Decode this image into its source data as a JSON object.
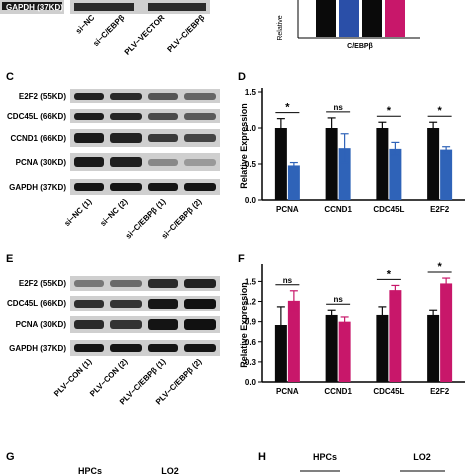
{
  "top_strip": {
    "gapdh_label": "GAPDH (37KD)",
    "lanes": [
      "si−NC",
      "si−C/EBPβ",
      "PLV−VECTOR",
      "PLV−C/EBPβ"
    ],
    "partial_chart_ylabel": "Relative",
    "partial_chart_xlabel": "C/EBPβ"
  },
  "panels": {
    "C": {
      "letter": "C",
      "bands": [
        "E2F2 (55KD)",
        "CDC45L (66KD)",
        "CCND1 (66KD)",
        "PCNA (30KD)",
        "GAPDH (37KD)"
      ],
      "lanes": [
        "si−NC (1)",
        "si−NC (2)",
        "si−C/EBPβ (1)",
        "si−C/EBPβ (2)"
      ]
    },
    "E": {
      "letter": "E",
      "bands": [
        "E2F2 (55KD)",
        "CDC45L (66KD)",
        "PCNA (30KD)",
        "GAPDH (37KD)"
      ],
      "lanes": [
        "PLV−CON (1)",
        "PLV−CON (2)",
        "PLV−C/EBPβ (1)",
        "PLV−C/EBPβ (2)"
      ]
    },
    "D": {
      "letter": "D"
    },
    "F": {
      "letter": "F"
    },
    "G": {
      "letter": "G",
      "texts": [
        "HPCs",
        "LO2"
      ]
    },
    "H": {
      "letter": "H",
      "texts": [
        "HPCs",
        "LO2"
      ]
    }
  },
  "colors": {
    "control": "#0a0a0a",
    "knockdown": "#2f63b8",
    "overexpression": "#c8176a",
    "partial_blue": "#2a4fa8"
  },
  "chart_data": [
    {
      "id": "D",
      "type": "bar",
      "categories": [
        "PCNA",
        "CCND1",
        "CDC45L",
        "E2F2"
      ],
      "ylabel": "Relative Expression",
      "ylim": [
        0,
        1.5
      ],
      "yticks": [
        "0.0",
        "0.5",
        "1.0",
        "1.5"
      ],
      "series": [
        {
          "values": [
            1.0,
            1.0,
            1.0,
            1.0
          ],
          "errors": [
            0.13,
            0.14,
            0.08,
            0.08
          ],
          "color": "#0a0a0a"
        },
        {
          "values": [
            0.48,
            0.72,
            0.71,
            0.7
          ],
          "errors": [
            0.04,
            0.2,
            0.09,
            0.04
          ],
          "color": "#2f63b8"
        }
      ],
      "significance": [
        "*",
        "ns",
        "*",
        "*"
      ]
    },
    {
      "id": "F",
      "type": "bar",
      "categories": [
        "PCNA",
        "CCND1",
        "CDC45L",
        "E2F2"
      ],
      "ylabel": "Relative Expression",
      "ylim": [
        0,
        1.7
      ],
      "yticks": [
        "0.0",
        "0.3",
        "0.6",
        "0.9",
        "1.2",
        "1.5"
      ],
      "series": [
        {
          "values": [
            0.85,
            1.0,
            1.0,
            1.0
          ],
          "errors": [
            0.27,
            0.07,
            0.12,
            0.07
          ],
          "color": "#0a0a0a"
        },
        {
          "values": [
            1.21,
            0.9,
            1.37,
            1.47
          ],
          "errors": [
            0.15,
            0.07,
            0.07,
            0.08
          ],
          "color": "#c8176a"
        }
      ],
      "significance": [
        "ns",
        "ns",
        "*",
        "*"
      ]
    }
  ]
}
